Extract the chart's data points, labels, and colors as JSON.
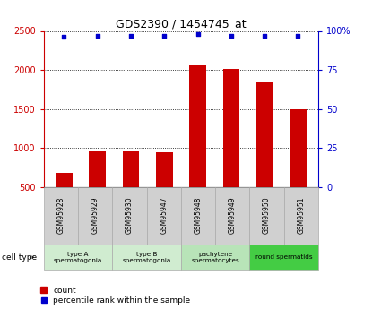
{
  "title": "GDS2390 / 1454745_at",
  "samples": [
    "GSM95928",
    "GSM95929",
    "GSM95930",
    "GSM95947",
    "GSM95948",
    "GSM95949",
    "GSM95950",
    "GSM95951"
  ],
  "counts": [
    680,
    960,
    960,
    950,
    2060,
    2010,
    1840,
    1500
  ],
  "percentiles": [
    96,
    97,
    97,
    97,
    98,
    97,
    97,
    97
  ],
  "bar_color": "#cc0000",
  "dot_color": "#0000cc",
  "ylim_left": [
    500,
    2500
  ],
  "ylim_right": [
    0,
    100
  ],
  "yticks_left": [
    500,
    1000,
    1500,
    2000,
    2500
  ],
  "yticks_right": [
    0,
    25,
    50,
    75,
    100
  ],
  "ytick_right_labels": [
    "0",
    "25",
    "50",
    "75",
    "100%"
  ],
  "groups": [
    {
      "label": "type A\nspermatogonia",
      "samples_range": [
        0,
        2
      ],
      "color": "#d0ecd0"
    },
    {
      "label": "type B\nspermatogonia",
      "samples_range": [
        2,
        4
      ],
      "color": "#d0ecd0"
    },
    {
      "label": "pachytene\nspermatocytes",
      "samples_range": [
        4,
        6
      ],
      "color": "#b8e4b8"
    },
    {
      "label": "round spermatids",
      "samples_range": [
        6,
        8
      ],
      "color": "#44cc44"
    }
  ],
  "cell_type_label": "cell type",
  "legend_count_label": "count",
  "legend_percentile_label": "percentile rank within the sample",
  "bar_width": 0.5,
  "sample_box_color": "#d0d0d0",
  "sample_box_border": "#aaaaaa",
  "bg_color": "#ffffff"
}
